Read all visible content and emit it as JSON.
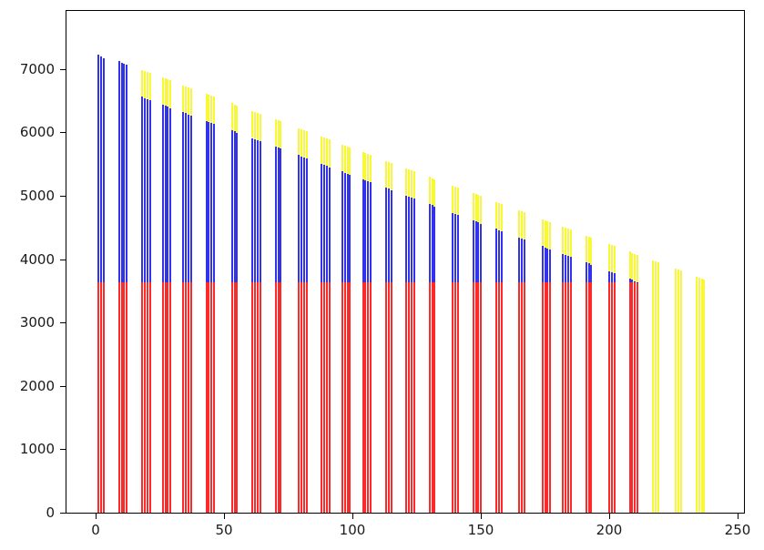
{
  "figure": {
    "title": "",
    "background": "#ffffff",
    "spine_color": "#000000",
    "tick_label_color": "#1a1a1a"
  },
  "chart_data": {
    "type": "bar",
    "title": "",
    "xlabel": "",
    "ylabel": "",
    "legend": null,
    "grid": false,
    "xlim": [
      -11.5,
      252.5
    ],
    "ylim": [
      0,
      7915
    ],
    "x_ticks": [
      0,
      50,
      100,
      150,
      200,
      250
    ],
    "x_tick_labels": [
      "0",
      "50",
      "100",
      "150",
      "200",
      "250"
    ],
    "y_ticks": [
      0,
      1000,
      2000,
      3000,
      4000,
      5000,
      6000,
      7000
    ],
    "y_tick_labels": [
      "0",
      "1000",
      "2000",
      "3000",
      "4000",
      "5000",
      "6000",
      "7000"
    ],
    "bar_width_units": 0.8,
    "series": [
      {
        "name": "red-base",
        "color": "#fb2b2b",
        "description": "constant bottom segment, 0 to red_top"
      },
      {
        "name": "blue-mid",
        "color": "#3232e8",
        "description": "middle segment, red_top to blue_top"
      },
      {
        "name": "yellow-cap",
        "color": "#f8f838",
        "description": "top segment, blue_top to yellow_top; full bar 0 to yellow_top when red/blue absent"
      }
    ],
    "columns": [
      "x",
      "red_top",
      "blue_top",
      "yellow_top"
    ],
    "bars": [
      [
        1,
        3630,
        7230,
        0
      ],
      [
        2,
        3630,
        7200,
        0
      ],
      [
        3,
        3630,
        7170,
        0
      ],
      [
        9,
        3630,
        7120,
        0
      ],
      [
        10,
        3630,
        7101,
        0
      ],
      [
        11,
        3630,
        7082,
        0
      ],
      [
        12,
        3630,
        7063,
        0
      ],
      [
        18,
        3630,
        6560,
        6985
      ],
      [
        19,
        3630,
        6542,
        6970
      ],
      [
        20,
        3630,
        6524,
        6955
      ],
      [
        21,
        3630,
        6506,
        6940
      ],
      [
        26,
        3630,
        6439,
        6864
      ],
      [
        27,
        3630,
        6421,
        6849
      ],
      [
        28,
        3630,
        6403,
        6834
      ],
      [
        29,
        3630,
        6385,
        6819
      ],
      [
        34,
        3630,
        6319,
        6744
      ],
      [
        35,
        3630,
        6301,
        6729
      ],
      [
        36,
        3630,
        6283,
        6714
      ],
      [
        37,
        3630,
        6265,
        6699
      ],
      [
        43,
        3630,
        6183,
        6608
      ],
      [
        44,
        3630,
        6165,
        6593
      ],
      [
        45,
        3630,
        6147,
        6578
      ],
      [
        46,
        3630,
        6129,
        6563
      ],
      [
        53,
        3630,
        6032,
        6457
      ],
      [
        54,
        3630,
        6014,
        6442
      ],
      [
        55,
        3630,
        5996,
        6427
      ],
      [
        61,
        3630,
        5911,
        6336
      ],
      [
        62,
        3630,
        5893,
        6321
      ],
      [
        63,
        3630,
        5875,
        6306
      ],
      [
        64,
        3630,
        5857,
        6291
      ],
      [
        70,
        3630,
        5775,
        6200
      ],
      [
        71,
        3630,
        5757,
        6185
      ],
      [
        72,
        3630,
        5739,
        6170
      ],
      [
        79,
        3630,
        5639,
        6064
      ],
      [
        80,
        3630,
        5621,
        6049
      ],
      [
        81,
        3630,
        5603,
        6034
      ],
      [
        82,
        3630,
        5585,
        6019
      ],
      [
        88,
        3630,
        5503,
        5928
      ],
      [
        89,
        3630,
        5485,
        5913
      ],
      [
        90,
        3630,
        5467,
        5898
      ],
      [
        91,
        3630,
        5449,
        5883
      ],
      [
        96,
        3630,
        5382,
        5807
      ],
      [
        97,
        3630,
        5364,
        5792
      ],
      [
        98,
        3630,
        5346,
        5777
      ],
      [
        99,
        3630,
        5328,
        5762
      ],
      [
        104,
        3630,
        5262,
        5687
      ],
      [
        105,
        3630,
        5244,
        5672
      ],
      [
        106,
        3630,
        5226,
        5657
      ],
      [
        107,
        3630,
        5208,
        5642
      ],
      [
        113,
        3630,
        5126,
        5551
      ],
      [
        114,
        3630,
        5108,
        5536
      ],
      [
        115,
        3630,
        5090,
        5521
      ],
      [
        121,
        3630,
        5005,
        5430
      ],
      [
        122,
        3630,
        4987,
        5415
      ],
      [
        123,
        3630,
        4969,
        5400
      ],
      [
        124,
        3630,
        4951,
        5385
      ],
      [
        130,
        3630,
        4869,
        5294
      ],
      [
        131,
        3630,
        4851,
        5279
      ],
      [
        132,
        3630,
        4833,
        5264
      ],
      [
        139,
        3630,
        4733,
        5158
      ],
      [
        140,
        3630,
        4715,
        5143
      ],
      [
        141,
        3630,
        4697,
        5128
      ],
      [
        147,
        3630,
        4612,
        5037
      ],
      [
        148,
        3630,
        4594,
        5022
      ],
      [
        149,
        3630,
        4576,
        5007
      ],
      [
        150,
        3630,
        4558,
        4992
      ],
      [
        156,
        3630,
        4476,
        4901
      ],
      [
        157,
        3630,
        4458,
        4886
      ],
      [
        158,
        3630,
        4440,
        4871
      ],
      [
        165,
        3630,
        4340,
        4765
      ],
      [
        166,
        3630,
        4322,
        4750
      ],
      [
        167,
        3630,
        4304,
        4735
      ],
      [
        174,
        3630,
        4204,
        4629
      ],
      [
        175,
        3630,
        4186,
        4614
      ],
      [
        176,
        3630,
        4168,
        4599
      ],
      [
        177,
        3630,
        4150,
        4584
      ],
      [
        182,
        3630,
        4084,
        4509
      ],
      [
        183,
        3630,
        4066,
        4494
      ],
      [
        184,
        3630,
        4048,
        4479
      ],
      [
        185,
        3630,
        4030,
        4464
      ],
      [
        191,
        3630,
        3948,
        4373
      ],
      [
        192,
        3630,
        3930,
        4358
      ],
      [
        193,
        3630,
        3912,
        4343
      ],
      [
        200,
        3630,
        3812,
        4237
      ],
      [
        201,
        3630,
        3794,
        4222
      ],
      [
        202,
        3630,
        3776,
        4207
      ],
      [
        208,
        3630,
        3691,
        4116
      ],
      [
        209,
        3630,
        3673,
        4101
      ],
      [
        210,
        3630,
        3655,
        4086
      ],
      [
        211,
        3630,
        3637,
        4071
      ],
      [
        217,
        0,
        0,
        3980
      ],
      [
        218,
        0,
        0,
        3965
      ],
      [
        219,
        0,
        0,
        3950
      ],
      [
        226,
        0,
        0,
        3844
      ],
      [
        227,
        0,
        0,
        3829
      ],
      [
        228,
        0,
        0,
        3814
      ],
      [
        234,
        0,
        0,
        3724
      ],
      [
        235,
        0,
        0,
        3709
      ],
      [
        236,
        0,
        0,
        3694
      ],
      [
        237,
        0,
        0,
        3679
      ]
    ]
  }
}
